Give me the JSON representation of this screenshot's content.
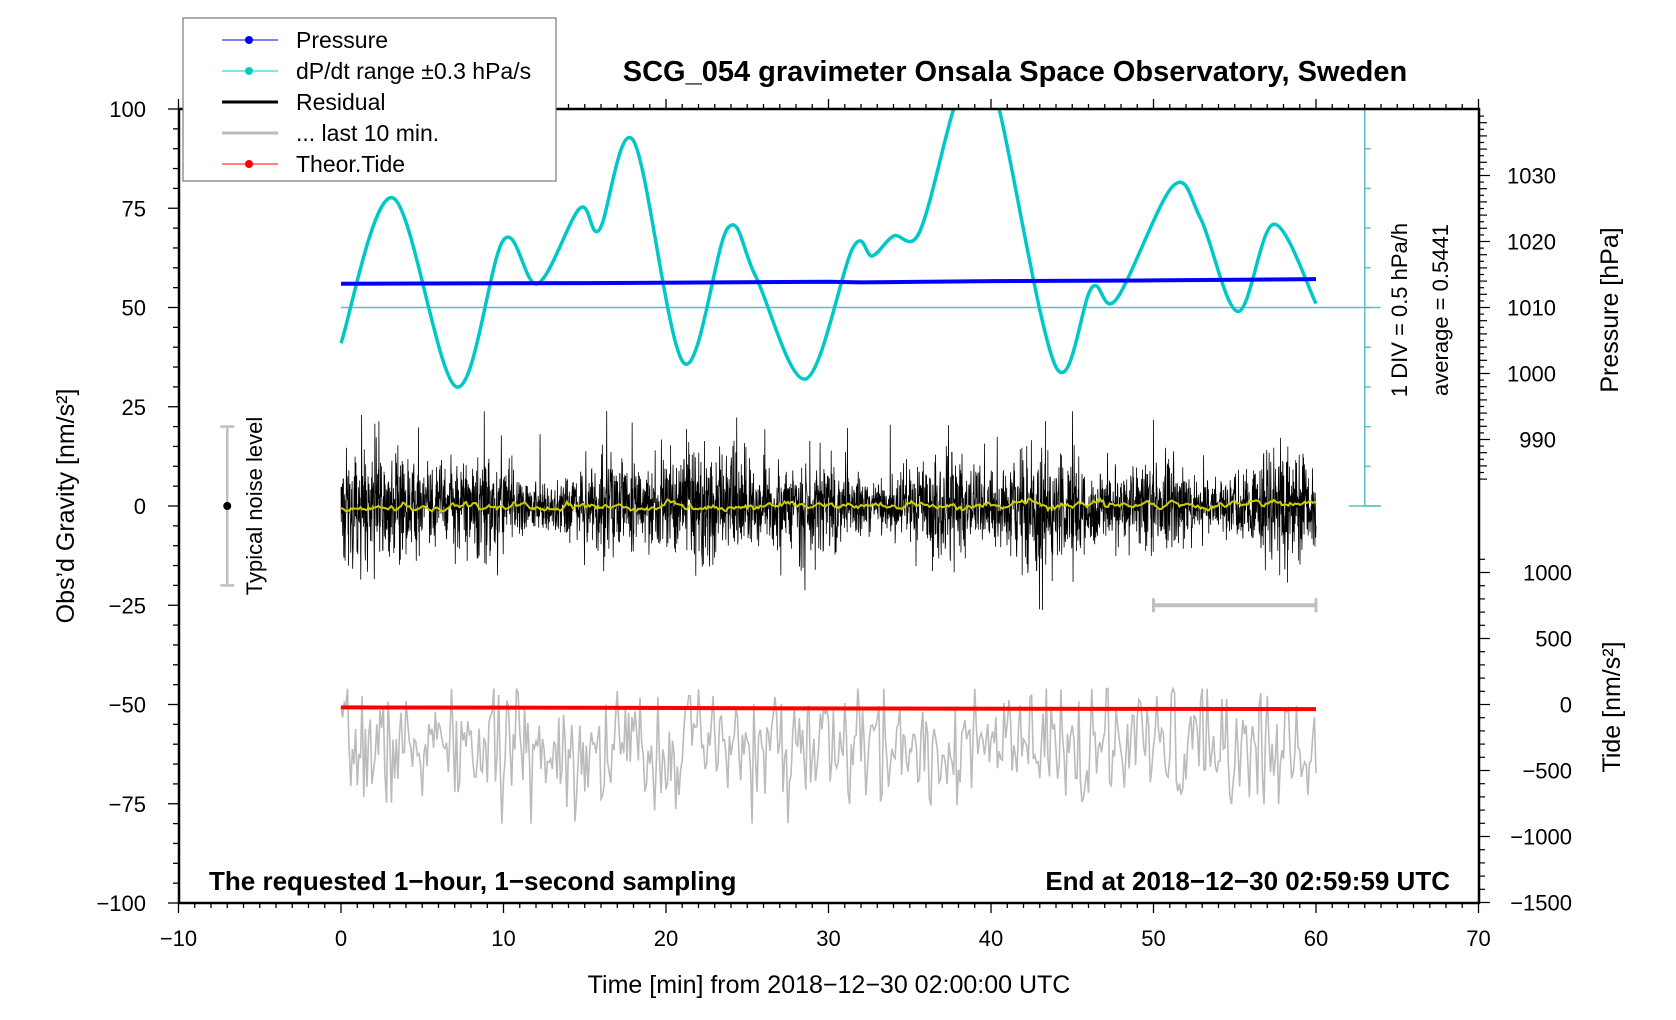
{
  "chart_data": {
    "type": "line",
    "title": "SCG_054 gravimeter Onsala Space Observatory, Sweden",
    "xlabel": "Time [min] from 2018−12−30 02:00:00 UTC",
    "ylabel_left": "Obs’d Gravity [nm/s²]",
    "ylabel_right_pressure": "Pressure [hPa]",
    "ylabel_right_tide": "Tide [nm/s²]",
    "xlim": [
      -10,
      70
    ],
    "ylim": [
      -100,
      100
    ],
    "x_ticks": [
      "−10",
      "0",
      "10",
      "20",
      "30",
      "40",
      "50",
      "60",
      "70"
    ],
    "x_tick_values": [
      -10,
      0,
      10,
      20,
      30,
      40,
      50,
      60,
      70
    ],
    "y_ticks": [
      "100",
      "75",
      "50",
      "25",
      "0",
      "−25",
      "−50",
      "−75",
      "−100"
    ],
    "y_tick_values": [
      100,
      75,
      50,
      25,
      0,
      -25,
      -50,
      -75,
      -100
    ],
    "pressure_ticks": [
      "1030",
      "1020",
      "1010",
      "1000",
      "990"
    ],
    "pressure_tick_values": [
      1030,
      1020,
      1010,
      1000,
      990
    ],
    "tide_ticks": [
      "1000",
      "500",
      "0",
      "−500",
      "−1000",
      "−1500"
    ],
    "tide_tick_values": [
      1000,
      500,
      0,
      -500,
      -1000,
      -1500
    ],
    "legend": {
      "placement": "top-left",
      "entries": [
        {
          "label": "Pressure",
          "color": "#0000ff",
          "marker": true
        },
        {
          "label": "dP/dt range ±0.3 hPa/s",
          "color": "#00cccc",
          "marker": true
        },
        {
          "label": "Residual",
          "color": "#000000",
          "marker": false
        },
        {
          "label": "... last 10 min.",
          "color": "#bbbbbb",
          "marker": false
        },
        {
          "label": "Theor.Tide",
          "color": "#ff0000",
          "marker": true
        }
      ]
    },
    "annotations": {
      "left_bottom": "The requested 1−hour, 1−second sampling",
      "right_bottom": "End at 2018−12−30 02:59:59 UTC",
      "noise_label": "Typical noise level",
      "scale_div": "1 DIV = 0.5 hPa/h",
      "scale_avg": "average = 0.5441"
    },
    "noise_level_bar": {
      "x": -7,
      "range": [
        -20,
        20
      ]
    },
    "last10_bar": {
      "range_min": [
        50,
        60
      ],
      "y": -25
    },
    "series": [
      {
        "name": "Pressure",
        "unit": "hPa",
        "color": "#0000ff",
        "x": [
          0,
          15,
          30,
          32,
          40,
          50,
          60
        ],
        "values": [
          1013.6,
          1013.7,
          1013.9,
          1013.8,
          1014.0,
          1014.1,
          1014.3
        ]
      },
      {
        "name": "dP/dt",
        "unit": "hPa/h",
        "color": "#00c8c8",
        "baseline_gravity": 50,
        "div_hPa_per_h": 0.5,
        "x": [
          0,
          3.2,
          7.1,
          10,
          12.1,
          14.7,
          15.9,
          18,
          21.1,
          23.8,
          25.5,
          28.6,
          31.5,
          32.7,
          34,
          35.6,
          37.7,
          39.1,
          40.5,
          44,
          46.2,
          47.7,
          51.2,
          52.9,
          55.2,
          57.4,
          60
        ],
        "values": [
          -0.45,
          1.38,
          -1.0,
          0.85,
          0.3,
          1.25,
          0.98,
          2.1,
          -0.7,
          1.0,
          0.4,
          -0.9,
          0.75,
          0.65,
          0.9,
          0.95,
          2.5,
          3.2,
          2.5,
          -0.75,
          0.25,
          0.1,
          1.53,
          1.12,
          -0.05,
          1.05,
          0.05
        ]
      },
      {
        "name": "Residual",
        "unit": "nm/s²",
        "color": "#000000",
        "x_range": [
          0,
          60
        ],
        "samples": 3600,
        "std": 5.5,
        "spike_max": 24,
        "seed": 54
      },
      {
        "name": "Residual smoothed",
        "unit": "nm/s²",
        "color": "#cccc00",
        "x": [
          0,
          60
        ],
        "values": [
          -0.5,
          0.6
        ]
      },
      {
        "name": "... last 10 min.",
        "unit": "nm/s²",
        "color": "#bbbbbb",
        "offset": -61,
        "x_range": [
          0,
          60
        ],
        "samples": 600,
        "std": 8,
        "seed": 7
      },
      {
        "name": "Theor.Tide",
        "unit": "nm/s²",
        "color": "#ff0000",
        "x": [
          0,
          15,
          32,
          48,
          60
        ],
        "values": [
          -22,
          -24,
          -30,
          -33,
          -35
        ]
      }
    ]
  }
}
